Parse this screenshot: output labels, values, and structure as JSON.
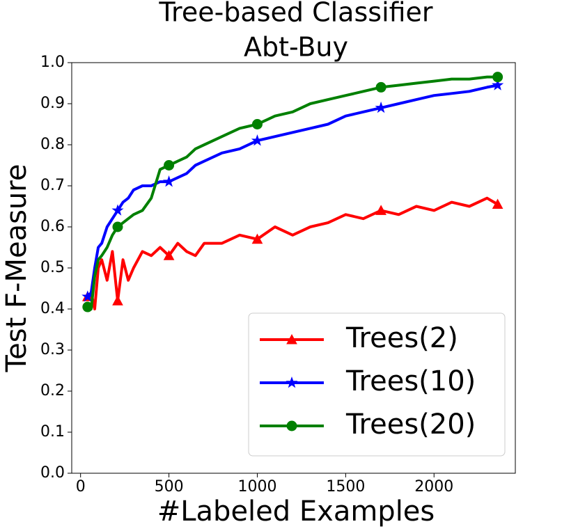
{
  "chart_data": {
    "type": "line",
    "title": "Tree-based Classifier",
    "subtitle": "Abt-Buy",
    "x_label": "#Labeled Examples",
    "y_label": "Test F-Measure",
    "x": [
      40,
      60,
      80,
      100,
      120,
      150,
      180,
      210,
      240,
      270,
      300,
      350,
      400,
      450,
      500,
      550,
      600,
      650,
      700,
      800,
      900,
      1000,
      1100,
      1200,
      1300,
      1400,
      1500,
      1600,
      1700,
      1800,
      1900,
      2000,
      2100,
      2200,
      2300,
      2360
    ],
    "series": [
      {
        "name": "Trees(2)",
        "color": "#ff0000",
        "marker": "triangle",
        "values": [
          0.43,
          0.44,
          0.4,
          0.5,
          0.52,
          0.47,
          0.54,
          0.42,
          0.52,
          0.47,
          0.5,
          0.54,
          0.53,
          0.55,
          0.53,
          0.56,
          0.54,
          0.53,
          0.56,
          0.56,
          0.58,
          0.57,
          0.6,
          0.58,
          0.6,
          0.61,
          0.63,
          0.62,
          0.64,
          0.63,
          0.65,
          0.64,
          0.66,
          0.65,
          0.67,
          0.655
        ]
      },
      {
        "name": "Trees(10)",
        "color": "#0000ff",
        "marker": "star",
        "values": [
          0.43,
          0.44,
          0.5,
          0.55,
          0.56,
          0.6,
          0.62,
          0.64,
          0.66,
          0.67,
          0.69,
          0.7,
          0.7,
          0.71,
          0.71,
          0.72,
          0.73,
          0.75,
          0.76,
          0.78,
          0.79,
          0.81,
          0.82,
          0.83,
          0.84,
          0.85,
          0.87,
          0.88,
          0.89,
          0.9,
          0.91,
          0.92,
          0.925,
          0.93,
          0.94,
          0.945
        ]
      },
      {
        "name": "Trees(20)",
        "color": "#008000",
        "marker": "circle",
        "values": [
          0.405,
          0.4,
          0.48,
          0.52,
          0.53,
          0.55,
          0.58,
          0.6,
          0.61,
          0.62,
          0.63,
          0.64,
          0.67,
          0.74,
          0.75,
          0.76,
          0.77,
          0.79,
          0.8,
          0.82,
          0.84,
          0.85,
          0.87,
          0.88,
          0.9,
          0.91,
          0.92,
          0.93,
          0.94,
          0.945,
          0.95,
          0.955,
          0.96,
          0.96,
          0.965,
          0.965
        ]
      }
    ],
    "xlim": [
      -50,
      2460
    ],
    "xticks": [
      0,
      500,
      1000,
      1500,
      2000
    ],
    "ylim": [
      0,
      1
    ],
    "yticks": [
      {
        "value": 0,
        "label": "0.0"
      },
      0.1,
      0.2,
      0.3,
      0.4,
      0.5,
      0.6,
      0.7,
      0.8,
      0.9,
      {
        "value": 1,
        "label": "1.0"
      }
    ],
    "grid": false,
    "legend": "lower right"
  }
}
